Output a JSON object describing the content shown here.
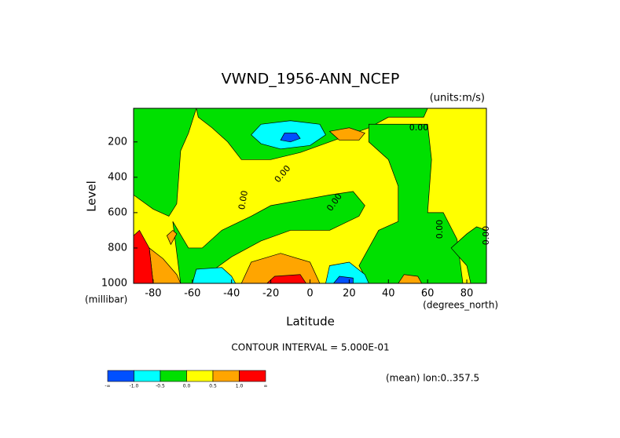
{
  "chart_data": {
    "type": "contour",
    "title": "VWND_1956-ANN_NCEP",
    "units": "(units:m/s)",
    "xlabel": "Latitude",
    "xunit": "(degrees_north)",
    "ylabel": "Level",
    "yunit": "(millibar)",
    "xlim": [
      -90,
      90
    ],
    "ylim": [
      1000,
      10
    ],
    "xticks": [
      -80,
      -60,
      -40,
      -20,
      0,
      20,
      40,
      60,
      80
    ],
    "yticks": [
      200,
      400,
      600,
      800,
      1000
    ],
    "background": "#ffff00",
    "regions": [
      {
        "color": "#00e000",
        "points": [
          [
            -90,
            10
          ],
          [
            -58,
            10
          ],
          [
            -62,
            150
          ],
          [
            -66,
            250
          ],
          [
            -67,
            400
          ],
          [
            -68,
            550
          ],
          [
            -72,
            620
          ],
          [
            -80,
            580
          ],
          [
            -90,
            500
          ]
        ]
      },
      {
        "color": "#00e000",
        "points": [
          [
            -58,
            10
          ],
          [
            60,
            10
          ],
          [
            58,
            60
          ],
          [
            40,
            60
          ],
          [
            30,
            120
          ],
          [
            10,
            200
          ],
          [
            -5,
            260
          ],
          [
            -20,
            300
          ],
          [
            -35,
            300
          ],
          [
            -42,
            200
          ],
          [
            -50,
            120
          ],
          [
            -57,
            60
          ]
        ]
      },
      {
        "color": "#00e000",
        "points": [
          [
            -70,
            650
          ],
          [
            -62,
            800
          ],
          [
            -55,
            800
          ],
          [
            -45,
            700
          ],
          [
            -30,
            620
          ],
          [
            -20,
            560
          ],
          [
            -10,
            540
          ],
          [
            10,
            500
          ],
          [
            22,
            480
          ],
          [
            28,
            560
          ],
          [
            25,
            620
          ],
          [
            10,
            700
          ],
          [
            -10,
            700
          ],
          [
            -25,
            760
          ],
          [
            -40,
            850
          ],
          [
            -50,
            930
          ],
          [
            -55,
            1000
          ],
          [
            -66,
            1000
          ]
        ]
      },
      {
        "color": "#00e000",
        "points": [
          [
            30,
            100
          ],
          [
            60,
            100
          ],
          [
            62,
            300
          ],
          [
            60,
            600
          ],
          [
            68,
            600
          ],
          [
            75,
            750
          ],
          [
            78,
            1000
          ],
          [
            30,
            1000
          ],
          [
            25,
            900
          ],
          [
            35,
            700
          ],
          [
            45,
            650
          ],
          [
            45,
            450
          ],
          [
            40,
            300
          ],
          [
            30,
            200
          ]
        ]
      },
      {
        "color": "#00e000",
        "points": [
          [
            72,
            800
          ],
          [
            80,
            900
          ],
          [
            82,
            1000
          ],
          [
            90,
            1000
          ],
          [
            90,
            700
          ],
          [
            85,
            680
          ],
          [
            80,
            720
          ]
        ]
      },
      {
        "color": "#00ffff",
        "points": [
          [
            -30,
            160
          ],
          [
            -25,
            100
          ],
          [
            -10,
            80
          ],
          [
            5,
            100
          ],
          [
            8,
            160
          ],
          [
            0,
            220
          ],
          [
            -15,
            240
          ],
          [
            -25,
            210
          ]
        ]
      },
      {
        "color": "#0050ff",
        "points": [
          [
            -13,
            150
          ],
          [
            -7,
            150
          ],
          [
            -5,
            180
          ],
          [
            -10,
            200
          ],
          [
            -15,
            190
          ]
        ]
      },
      {
        "color": "#ffa500",
        "points": [
          [
            10,
            140
          ],
          [
            20,
            120
          ],
          [
            28,
            150
          ],
          [
            25,
            190
          ],
          [
            15,
            190
          ]
        ]
      },
      {
        "color": "#00ffff",
        "points": [
          [
            -60,
            1000
          ],
          [
            -58,
            920
          ],
          [
            -45,
            910
          ],
          [
            -40,
            960
          ],
          [
            -38,
            1000
          ]
        ]
      },
      {
        "color": "#00ffff",
        "points": [
          [
            8,
            1000
          ],
          [
            10,
            900
          ],
          [
            20,
            880
          ],
          [
            28,
            950
          ],
          [
            30,
            1000
          ]
        ]
      },
      {
        "color": "#0050ff",
        "points": [
          [
            12,
            1000
          ],
          [
            15,
            960
          ],
          [
            22,
            970
          ],
          [
            22,
            1000
          ]
        ]
      },
      {
        "color": "#ffa500",
        "points": [
          [
            -35,
            1000
          ],
          [
            -30,
            880
          ],
          [
            -15,
            830
          ],
          [
            0,
            880
          ],
          [
            5,
            1000
          ]
        ]
      },
      {
        "color": "#ff0000",
        "points": [
          [
            -22,
            1000
          ],
          [
            -18,
            960
          ],
          [
            -5,
            950
          ],
          [
            -2,
            1000
          ]
        ]
      },
      {
        "color": "#ffa500",
        "points": [
          [
            45,
            1000
          ],
          [
            48,
            950
          ],
          [
            55,
            960
          ],
          [
            57,
            1000
          ]
        ]
      },
      {
        "color": "#ffa500",
        "points": [
          [
            -82,
            800
          ],
          [
            -75,
            860
          ],
          [
            -68,
            950
          ],
          [
            -66,
            1000
          ],
          [
            -80,
            1000
          ]
        ]
      },
      {
        "color": "#ff0000",
        "points": [
          [
            -90,
            730
          ],
          [
            -87,
            700
          ],
          [
            -82,
            800
          ],
          [
            -80,
            1000
          ],
          [
            -90,
            1000
          ]
        ]
      },
      {
        "color": "#ffa500",
        "points": [
          [
            -73,
            730
          ],
          [
            -70,
            700
          ],
          [
            -68,
            720
          ],
          [
            -71,
            780
          ]
        ]
      }
    ],
    "contour_labels": [
      "0.00",
      "0.00",
      "0.00",
      "0.00",
      "0.00",
      "0.00"
    ],
    "contour_interval": "CONTOUR INTERVAL = 5.000E-01",
    "footnote": "(mean) lon:0..357.5",
    "colorbar": {
      "colors": [
        "#0050ff",
        "#00ffff",
        "#00e000",
        "#ffff00",
        "#ffa500",
        "#ff0000"
      ],
      "labels": [
        "-∞",
        "-1.0",
        "-0.5",
        "0.0",
        "0.5",
        "1.0",
        "∞"
      ]
    }
  }
}
